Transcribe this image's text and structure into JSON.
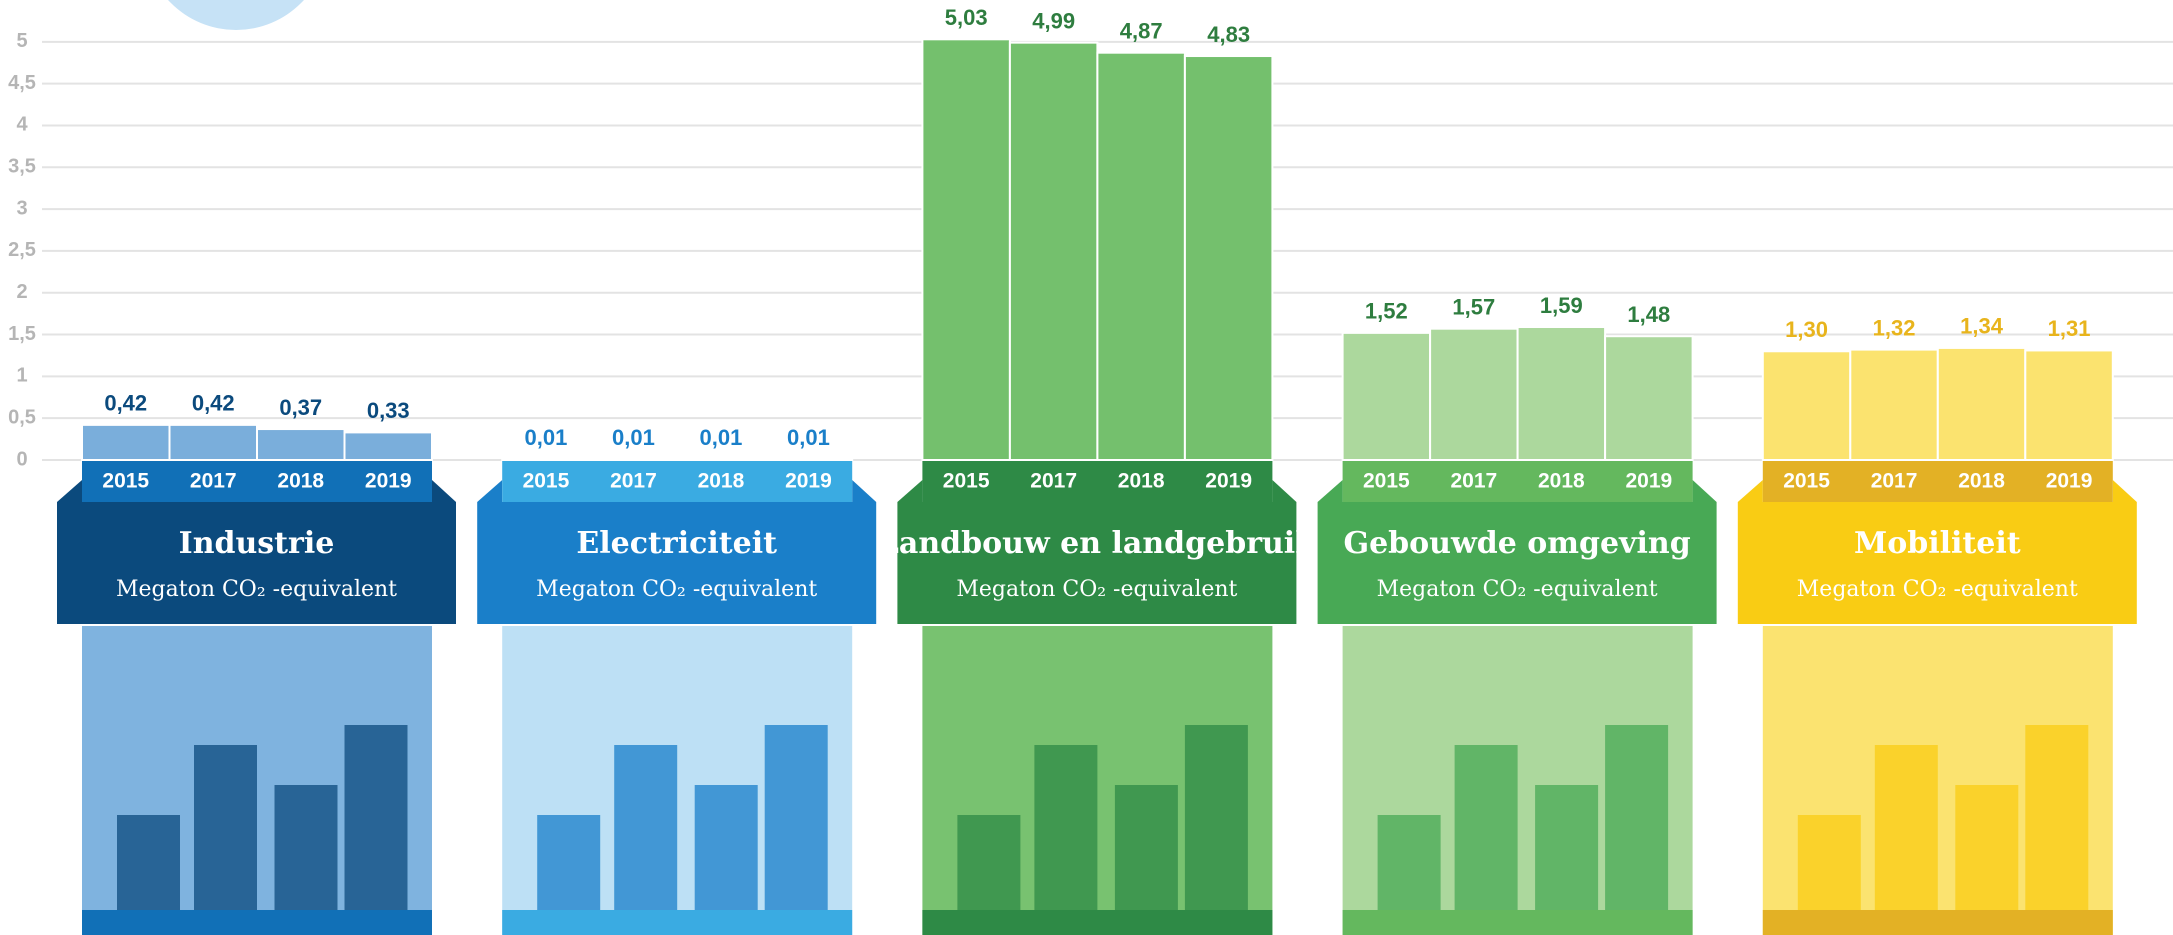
{
  "chart_data": {
    "type": "bar",
    "ylim": [
      0,
      5.5
    ],
    "yticks": [
      0,
      {
        "value": 0.5,
        "label": "0,5"
      },
      1,
      {
        "value": 1.5,
        "label": "1,5"
      },
      2,
      {
        "value": 2.5,
        "label": "2,5"
      },
      3,
      {
        "value": 3.5,
        "label": "3,5"
      },
      4,
      {
        "value": 4.5,
        "label": "4,5"
      },
      5
    ],
    "grid": true,
    "panels": [
      {
        "title": "Industrie",
        "unit": "Megaton CO₂ -equivalent",
        "categories": [
          "2015",
          "2017",
          "2018",
          "2019"
        ],
        "values": [
          0.42,
          0.42,
          0.37,
          0.33
        ],
        "value_labels": [
          "0,42",
          "0,42",
          "0,37",
          "0,33"
        ],
        "color": "#7aaedb",
        "header_color": "#0b4a7d",
        "strip_color": "#1170b7",
        "label_color": "#0b4a7d",
        "image_color": "#7fb3df"
      },
      {
        "title": "Electriciteit",
        "unit": "Megaton CO₂ -equivalent",
        "categories": [
          "2015",
          "2017",
          "2018",
          "2019"
        ],
        "values": [
          0.01,
          0.01,
          0.01,
          0.01
        ],
        "value_labels": [
          "0,01",
          "0,01",
          "0,01",
          "0,01"
        ],
        "color": "#b7dcf3",
        "header_color": "#1a7fc9",
        "strip_color": "#3aabe2",
        "label_color": "#1a7fc9",
        "image_color": "#bde0f5"
      },
      {
        "title": "Landbouw en landgebruik",
        "unit": "Megaton CO₂ -equivalent",
        "categories": [
          "2015",
          "2017",
          "2018",
          "2019"
        ],
        "values": [
          5.03,
          4.99,
          4.87,
          4.83
        ],
        "value_labels": [
          "5,03",
          "4,99",
          "4,87",
          "4,83"
        ],
        "color": "#74c06d",
        "header_color": "#2e8a46",
        "strip_color": "#2e8a46",
        "label_color": "#2e7d3f",
        "image_color": "#78c270"
      },
      {
        "title": "Gebouwde omgeving",
        "unit": "Megaton CO₂ -equivalent",
        "categories": [
          "2015",
          "2017",
          "2018",
          "2019"
        ],
        "values": [
          1.52,
          1.57,
          1.59,
          1.48
        ],
        "value_labels": [
          "1,52",
          "1,57",
          "1,59",
          "1,48"
        ],
        "color": "#acd89d",
        "header_color": "#48a955",
        "strip_color": "#64b85e",
        "label_color": "#2e7d3f",
        "image_color": "#acd89d"
      },
      {
        "title": "Mobiliteit",
        "unit": "Megaton CO₂ -equivalent",
        "categories": [
          "2015",
          "2017",
          "2018",
          "2019"
        ],
        "values": [
          1.3,
          1.32,
          1.34,
          1.31
        ],
        "value_labels": [
          "1,30",
          "1,32",
          "1,34",
          "1,31"
        ],
        "color": "#fbe36f",
        "header_color": "#f9cc14",
        "strip_color": "#e3b125",
        "label_color": "#e8b41c",
        "image_color": "#fbe370"
      }
    ]
  }
}
